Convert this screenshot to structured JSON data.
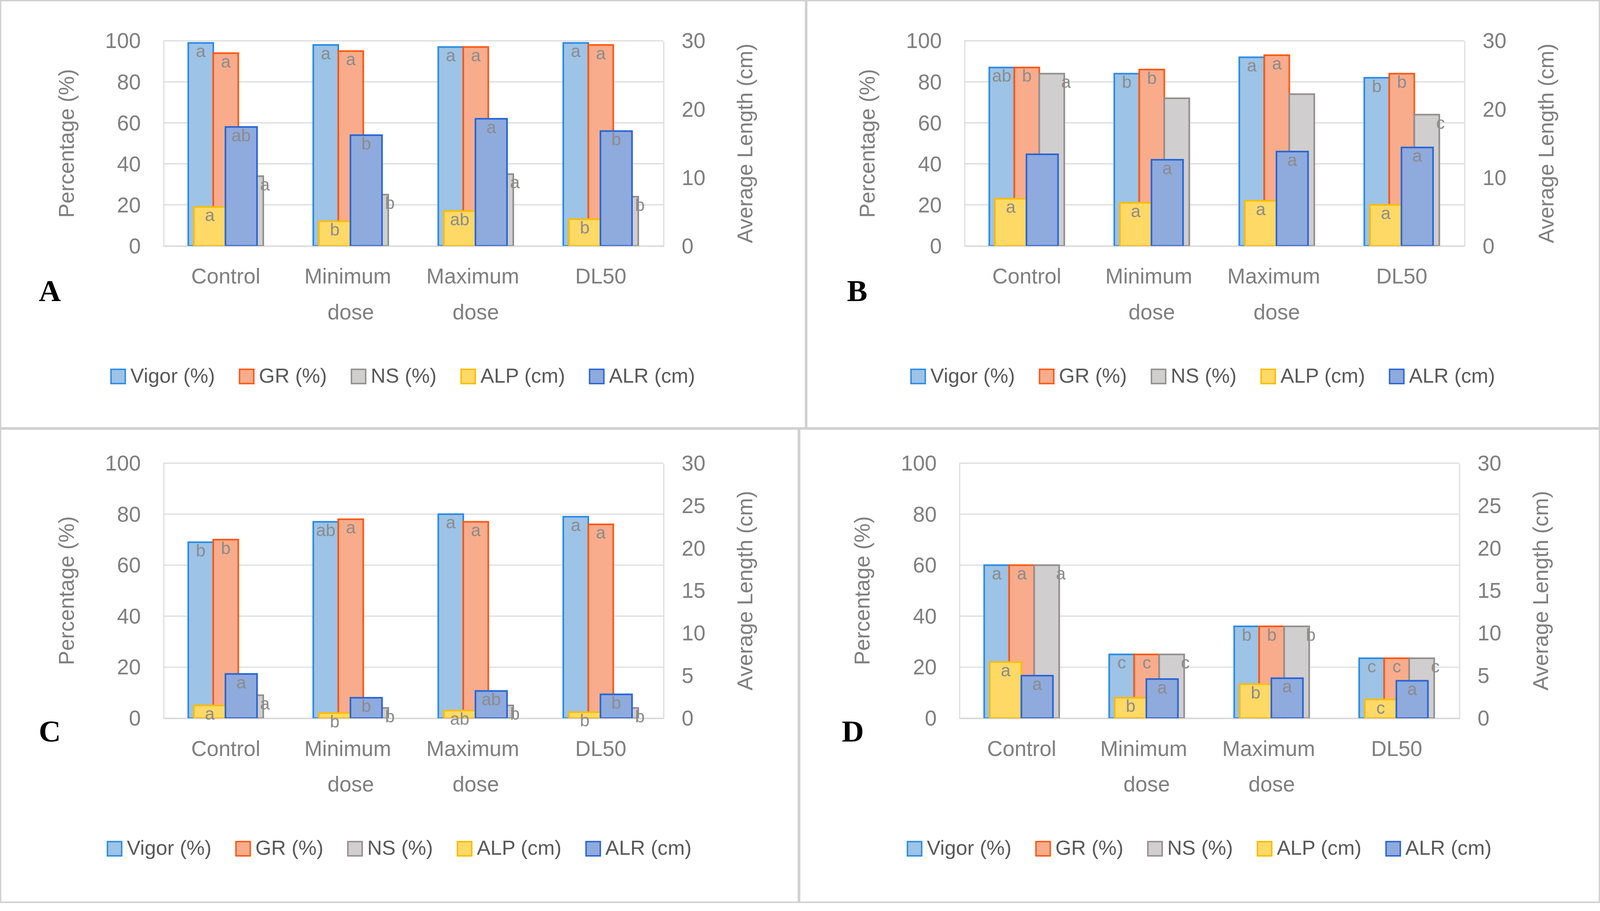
{
  "chart_data": [
    {
      "type": "bar",
      "title": "A",
      "categories": [
        "Control",
        "Minimum dose",
        "Maximum dose",
        "DL50"
      ],
      "ylabel": "Percentage (%)",
      "y2label": "Average Length (cm)",
      "ylim": [
        0,
        100
      ],
      "yticks": [
        0,
        20,
        40,
        60,
        80,
        100
      ],
      "y2lim": [
        0,
        30
      ],
      "y2ticks": [
        0,
        10,
        20,
        30
      ],
      "grid": true,
      "legend": "bottom",
      "series": [
        {
          "name": "Vigor (%)",
          "color": "#9DC3E6",
          "values": [
            99,
            98,
            97,
            99
          ],
          "annotations": [
            "a",
            "a",
            "a",
            "a"
          ]
        },
        {
          "name": "GR (%)",
          "color": "#F8AC8C",
          "values": [
            94,
            95,
            97,
            98
          ],
          "annotations": [
            "a",
            "a",
            "a",
            "a"
          ]
        },
        {
          "name": "NS (%)",
          "color": "#D0CECE",
          "values": [
            34,
            25,
            35,
            24
          ],
          "annotations": [
            "a",
            "b",
            "a",
            "b"
          ]
        },
        {
          "name": "ALP (cm)",
          "color": "#FFD966",
          "axis": "y2",
          "values": [
            5.7,
            3.6,
            5.1,
            3.9
          ],
          "annotations": [
            "a",
            "b",
            "ab",
            "b"
          ]
        },
        {
          "name": "ALR (cm)",
          "color": "#8FAADC",
          "axis": "y2",
          "values": [
            17.4,
            16.2,
            18.6,
            16.8
          ],
          "annotations": [
            "ab",
            "b",
            "a",
            "b"
          ]
        }
      ]
    },
    {
      "type": "bar",
      "title": "B",
      "categories": [
        "Control",
        "Minimum dose",
        "Maximum dose",
        "DL50"
      ],
      "ylabel": "Percentage (%)",
      "y2label": "Average Length (cm)",
      "ylim": [
        0,
        100
      ],
      "yticks": [
        0,
        20,
        40,
        60,
        80,
        100
      ],
      "y2lim": [
        0,
        30
      ],
      "y2ticks": [
        0,
        10,
        20,
        30
      ],
      "grid": true,
      "legend": "bottom",
      "series": [
        {
          "name": "Vigor (%)",
          "color": "#9DC3E6",
          "values": [
            87,
            84,
            92,
            82
          ],
          "annotations": [
            "ab",
            "b",
            "a",
            "b"
          ]
        },
        {
          "name": "GR (%)",
          "color": "#F8AC8C",
          "values": [
            87,
            86,
            93,
            84
          ],
          "annotations": [
            "b",
            "b",
            "a",
            "b"
          ]
        },
        {
          "name": "NS (%)",
          "color": "#D0CECE",
          "values": [
            84,
            72,
            74,
            64
          ],
          "annotations": [
            "a",
            null,
            null,
            "c"
          ]
        },
        {
          "name": "ALP (cm)",
          "color": "#FFD966",
          "axis": "y2",
          "values": [
            6.9,
            6.3,
            6.6,
            6.0
          ],
          "annotations": [
            "a",
            "a",
            "a",
            "a"
          ]
        },
        {
          "name": "ALR (cm)",
          "color": "#8FAADC",
          "axis": "y2",
          "values": [
            13.4,
            12.6,
            13.8,
            14.4
          ],
          "annotations": [
            null,
            "a",
            "a",
            "a"
          ]
        }
      ]
    },
    {
      "type": "bar",
      "title": "C",
      "categories": [
        "Control",
        "Minimum dose",
        "Maximum dose",
        "DL50"
      ],
      "ylabel": "Percentage (%)",
      "y2label": "Average Length (cm)",
      "ylim": [
        0,
        100
      ],
      "yticks": [
        0,
        20,
        40,
        60,
        80,
        100
      ],
      "y2lim": [
        0,
        30
      ],
      "y2ticks": [
        0,
        5,
        10,
        15,
        20,
        25,
        30
      ],
      "grid": true,
      "legend": "bottom",
      "series": [
        {
          "name": "Vigor (%)",
          "color": "#9DC3E6",
          "values": [
            69,
            77,
            80,
            79
          ],
          "annotations": [
            "b",
            "ab",
            "a",
            "a"
          ]
        },
        {
          "name": "GR (%)",
          "color": "#F8AC8C",
          "values": [
            70,
            78,
            77,
            76
          ],
          "annotations": [
            "b",
            "a",
            "a",
            "a"
          ]
        },
        {
          "name": "NS (%)",
          "color": "#D0CECE",
          "values": [
            9,
            4,
            5,
            4
          ],
          "annotations": [
            "a",
            "b",
            "b",
            "b"
          ]
        },
        {
          "name": "ALP (cm)",
          "color": "#FFD966",
          "axis": "y2",
          "values": [
            1.5,
            0.6,
            0.9,
            0.7
          ],
          "annotations": [
            "a",
            "b",
            "ab",
            "b"
          ]
        },
        {
          "name": "ALR (cm)",
          "color": "#8FAADC",
          "axis": "y2",
          "values": [
            5.2,
            2.4,
            3.2,
            2.8
          ],
          "annotations": [
            "a",
            "b",
            "ab",
            "b"
          ]
        }
      ]
    },
    {
      "type": "bar",
      "title": "D",
      "categories": [
        "Control",
        "Minimum dose",
        "Maximum dose",
        "DL50"
      ],
      "ylabel": "Percentage (%)",
      "y2label": "Average Length (cm)",
      "ylim": [
        0,
        100
      ],
      "yticks": [
        0,
        20,
        40,
        60,
        80,
        100
      ],
      "y2lim": [
        0,
        30
      ],
      "y2ticks": [
        0,
        5,
        10,
        15,
        20,
        25,
        30
      ],
      "grid": true,
      "legend": "bottom",
      "series": [
        {
          "name": "Vigor (%)",
          "color": "#9DC3E6",
          "values": [
            60,
            25,
            36,
            23.5
          ],
          "annotations": [
            "a",
            "c",
            "b",
            "c"
          ]
        },
        {
          "name": "GR (%)",
          "color": "#F8AC8C",
          "values": [
            60,
            25,
            36,
            23.5
          ],
          "annotations": [
            "a",
            "c",
            "b",
            "c"
          ]
        },
        {
          "name": "NS (%)",
          "color": "#D0CECE",
          "values": [
            60,
            25,
            36,
            23.5
          ],
          "annotations": [
            "a",
            "c",
            "b",
            "c"
          ]
        },
        {
          "name": "ALP (cm)",
          "color": "#FFD966",
          "axis": "y2",
          "values": [
            6.6,
            2.4,
            4.0,
            2.2
          ],
          "annotations": [
            "a",
            "b",
            "b",
            "c"
          ]
        },
        {
          "name": "ALR (cm)",
          "color": "#8FAADC",
          "axis": "y2",
          "values": [
            5.0,
            4.6,
            4.7,
            4.4
          ],
          "annotations": [
            "a",
            "a",
            "a",
            "a"
          ]
        }
      ]
    }
  ]
}
